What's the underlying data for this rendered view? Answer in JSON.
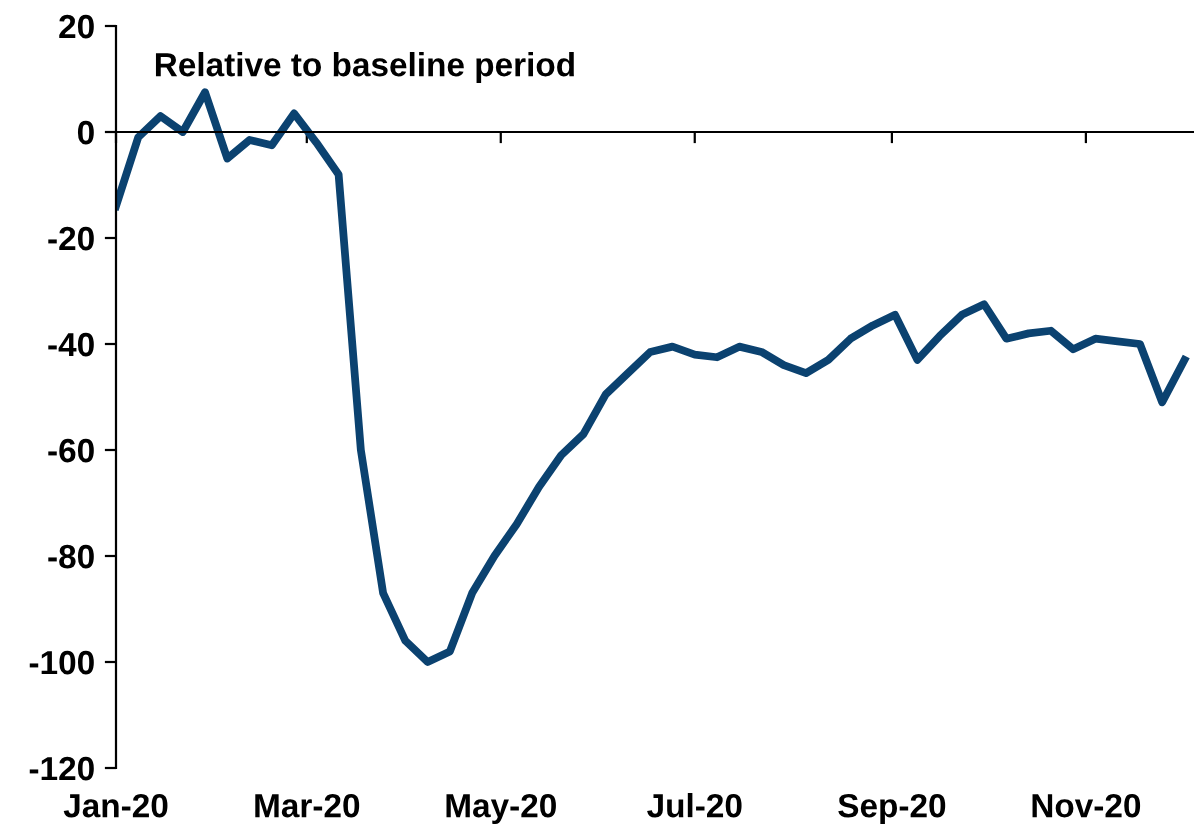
{
  "chart_data": {
    "type": "line",
    "title": "Relative to baseline period",
    "x": [
      "2020-01-01",
      "2020-01-08",
      "2020-01-15",
      "2020-01-22",
      "2020-01-29",
      "2020-02-05",
      "2020-02-12",
      "2020-02-19",
      "2020-02-26",
      "2020-03-04",
      "2020-03-11",
      "2020-03-18",
      "2020-03-25",
      "2020-04-01",
      "2020-04-08",
      "2020-04-15",
      "2020-04-22",
      "2020-04-29",
      "2020-05-06",
      "2020-05-13",
      "2020-05-20",
      "2020-05-27",
      "2020-06-03",
      "2020-06-10",
      "2020-06-17",
      "2020-06-24",
      "2020-07-01",
      "2020-07-08",
      "2020-07-15",
      "2020-07-22",
      "2020-07-29",
      "2020-08-05",
      "2020-08-12",
      "2020-08-19",
      "2020-08-26",
      "2020-09-02",
      "2020-09-09",
      "2020-09-16",
      "2020-09-23",
      "2020-09-30",
      "2020-10-07",
      "2020-10-14",
      "2020-10-21",
      "2020-10-28",
      "2020-11-04",
      "2020-11-11",
      "2020-11-18",
      "2020-11-25",
      "2020-12-02"
    ],
    "series": [
      {
        "color": "#0b4270",
        "values": [
          -14,
          -1,
          3,
          0,
          7.5,
          -5,
          -1.5,
          -2.5,
          3.5,
          -2,
          -8,
          -60,
          -87,
          -96,
          -100,
          -98,
          -87,
          -80,
          -74,
          -67,
          -61,
          -57,
          -49.5,
          -45.5,
          -41.5,
          -40.5,
          -42,
          -42.5,
          -40.5,
          -41.5,
          -44,
          -45.5,
          -43,
          -39,
          -36.5,
          -34.5,
          -43,
          -38.5,
          -34.5,
          -32.5,
          -39,
          -38,
          -37.5,
          -41,
          -39,
          -39.5,
          -40,
          -51,
          -43
        ]
      }
    ],
    "xlim": [
      "2020-01-01",
      "2020-12-05"
    ],
    "xticks": [
      {
        "value": "2020-01-01",
        "label": "Jan-20"
      },
      {
        "value": "2020-03-01",
        "label": "Mar-20"
      },
      {
        "value": "2020-05-01",
        "label": "May-20"
      },
      {
        "value": "2020-07-01",
        "label": "Jul-20"
      },
      {
        "value": "2020-09-01",
        "label": "Sep-20"
      },
      {
        "value": "2020-11-01",
        "label": "Nov-20"
      }
    ],
    "ylim": [
      -120,
      20
    ],
    "yticks": [
      -120,
      -100,
      -80,
      -60,
      -40,
      -20,
      0,
      20
    ],
    "legend": false,
    "marker": "none",
    "line_style": "solid"
  }
}
